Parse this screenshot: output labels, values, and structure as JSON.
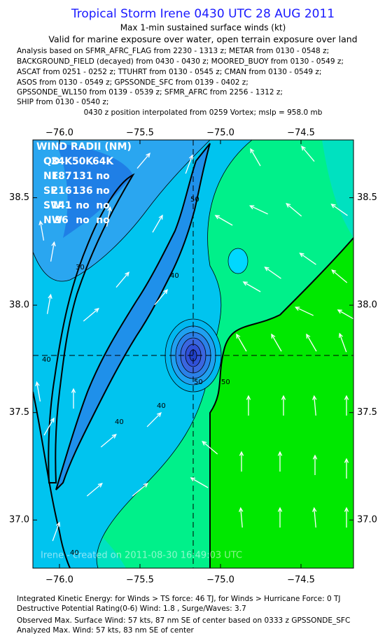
{
  "header": {
    "title": "Tropical Storm Irene 0430 UTC 28 AUG 2011",
    "subtitle": "Max 1-min sustained surface winds (kt)",
    "validity": "Valid for marine exposure over water, open terrain exposure over land",
    "analysis_lines": [
      "Analysis based on SFMR_AFRC_FLAG from 2230 - 1313 z; METAR from 0130 - 0548 z;",
      "BACKGROUND_FIELD (decayed) from 0430 - 0430 z; MOORED_BUOY from 0130 - 0549 z;",
      "ASCAT from 0251 - 0252 z; TTUHRT from 0130 - 0545 z; CMAN from 0130 - 0549 z;",
      "ASOS from 0130 - 0549 z; GPSSONDE_SFC from 0139 - 0402 z;",
      "GPSSONDE_WL150 from 0139 - 0539 z; SFMR_AFRC from 2256 - 1312 z;",
      "SHIP from 0130 - 0540 z;"
    ],
    "position_note": "0430 z position interpolated from 0259 Vortex; mslp = 958.0 mb"
  },
  "map": {
    "xlim": [
      -76.165,
      -74.174
    ],
    "ylim": [
      36.776,
      38.769
    ],
    "xticks": [
      {
        "value": -76.0,
        "label": "−76.0"
      },
      {
        "value": -75.5,
        "label": "−75.5"
      },
      {
        "value": -75.0,
        "label": "−75.0"
      },
      {
        "value": -74.5,
        "label": "−74.5"
      }
    ],
    "yticks": [
      {
        "value": 37.0,
        "label": "37.0"
      },
      {
        "value": 37.5,
        "label": "37.5"
      },
      {
        "value": 38.0,
        "label": "38.0"
      },
      {
        "value": 38.5,
        "label": "38.5"
      }
    ],
    "wind_radii": {
      "title": "WIND RADII (NM)",
      "rows": [
        [
          "QD",
          "34K",
          "50K",
          "64K"
        ],
        [
          "NE",
          "187",
          "131",
          "no"
        ],
        [
          "SE",
          "216",
          "136",
          "no"
        ],
        [
          "SW",
          "141",
          "no",
          "no"
        ],
        [
          "NW",
          "96",
          "no",
          "no"
        ]
      ]
    },
    "contour_labels": [
      "30",
      "40",
      "50",
      "40",
      "40",
      "40",
      "50",
      "50",
      "40"
    ],
    "watermark": "Irene - created on 2011-08-30 16:49:03 UTC"
  },
  "footer": {
    "lines": [
      "Integrated Kinetic Energy:  for Winds > TS force: 46 TJ,  for Winds > Hurricane Force: 0 TJ",
      "Destructive Potential Rating(0-6)  Wind: 1.8 , Surge/Waves: 3.7",
      "Observed Max. Surface Wind: 57 kts, 87 nm SE of center based on 0333 z GPSSONDE_SFC",
      "Analyzed Max. Wind: 57 kts, 83 nm SE of center"
    ]
  }
}
